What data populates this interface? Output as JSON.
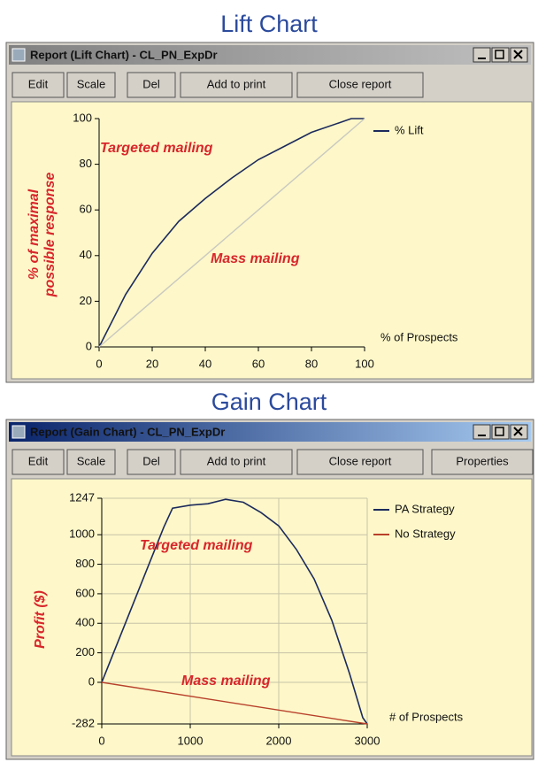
{
  "windows": [
    {
      "heading": "Lift Chart",
      "title": "Report (Lift Chart) - CL_PN_ExpDr",
      "buttons": [
        "Edit",
        "Scale",
        "Del",
        "Add to print",
        "Close report"
      ]
    },
    {
      "heading": "Gain Chart",
      "title": "Report (Gain Chart) - CL_PN_ExpDr",
      "buttons": [
        "Edit",
        "Scale",
        "Del",
        "Add to print",
        "Close report",
        "Properties"
      ]
    }
  ],
  "chart_data": [
    {
      "type": "line",
      "xlabel": "% of Prospects",
      "ylabel": [
        "% of maximal",
        "possible response"
      ],
      "annotations": [
        "Targeted mailing",
        "Mass mailing"
      ],
      "xlim": [
        0,
        100
      ],
      "xticks": [
        0,
        20,
        40,
        60,
        80,
        100
      ],
      "ylim": [
        0,
        100
      ],
      "yticks": [
        0,
        20,
        40,
        60,
        80,
        100
      ],
      "grid": false,
      "legend": "upper right",
      "series": [
        {
          "name": "% Lift",
          "color": "#1c2a5c",
          "x": [
            0,
            10,
            20,
            30,
            40,
            50,
            60,
            70,
            80,
            90,
            95,
            100
          ],
          "values": [
            0,
            23,
            41,
            55,
            65,
            74,
            82,
            88,
            94,
            98,
            100,
            100
          ]
        },
        {
          "color": "#c9c9c0",
          "x": [
            0,
            100
          ],
          "values": [
            0,
            100
          ]
        }
      ]
    },
    {
      "type": "line",
      "xlabel": "# of Prospects",
      "ylabel": [
        "Profit ($)"
      ],
      "annotations": [
        "Targeted mailing",
        "Mass mailing"
      ],
      "xlim": [
        0,
        3000
      ],
      "xticks": [
        0,
        1000,
        2000,
        3000
      ],
      "ylim": [
        -282,
        1247
      ],
      "yticks": [
        -282,
        0,
        200,
        400,
        600,
        800,
        1000,
        1247
      ],
      "grid": true,
      "legend": "upper right",
      "series": [
        {
          "name": "PA Strategy",
          "color": "#1c2a5c",
          "x": [
            0,
            200,
            400,
            600,
            700,
            800,
            1000,
            1200,
            1400,
            1600,
            1800,
            2000,
            2200,
            2400,
            2600,
            2800,
            2950,
            3000
          ],
          "values": [
            0,
            300,
            600,
            900,
            1050,
            1180,
            1200,
            1210,
            1240,
            1220,
            1150,
            1060,
            900,
            700,
            420,
            60,
            -240,
            -282
          ]
        },
        {
          "name": "No Strategy",
          "color": "#b8402a",
          "x": [
            0,
            3000
          ],
          "values": [
            0,
            -282
          ]
        }
      ]
    }
  ]
}
